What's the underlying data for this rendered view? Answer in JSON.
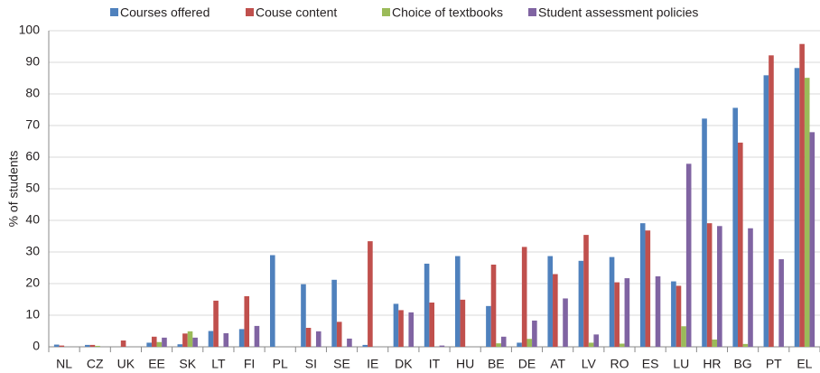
{
  "chart_data": {
    "type": "bar",
    "y_label": "% of students",
    "categories": [
      "NL",
      "CZ",
      "UK",
      "EE",
      "SK",
      "LT",
      "FI",
      "PL",
      "SI",
      "SE",
      "IE",
      "DK",
      "IT",
      "HU",
      "BE",
      "DE",
      "AT",
      "LV",
      "RO",
      "ES",
      "LU",
      "HR",
      "BG",
      "PT",
      "EL"
    ],
    "series": [
      {
        "name": "Courses offered",
        "color": "#4f81bd",
        "values": [
          0.7,
          0.6,
          0,
          1.3,
          0.8,
          5,
          5.6,
          29,
          19.8,
          21.2,
          0.6,
          13.6,
          26.3,
          28.7,
          12.9,
          1.3,
          28.7,
          27.2,
          28.4,
          39.1,
          20.7,
          72.2,
          75.6,
          85.9,
          88.2
        ]
      },
      {
        "name": "Couse content",
        "color": "#c0504d",
        "values": [
          0.4,
          0.6,
          2,
          3.2,
          4.2,
          14.6,
          16,
          0,
          6,
          7.9,
          33.4,
          11.6,
          14,
          14.9,
          26,
          31.6,
          23,
          35.4,
          20.4,
          36.8,
          19.3,
          39.1,
          64.6,
          92.2,
          95.8
        ]
      },
      {
        "name": "Choice of textbooks",
        "color": "#9bbb59",
        "values": [
          0,
          0.3,
          0,
          1.5,
          4.9,
          0,
          0,
          0,
          0,
          0,
          0,
          0,
          0,
          0,
          1.1,
          2.5,
          0,
          1.3,
          1,
          0,
          6.5,
          2.3,
          0.9,
          0,
          85.1
        ]
      },
      {
        "name": "Student assessment policies",
        "color": "#8064a2",
        "values": [
          0,
          0,
          0,
          2.9,
          2.9,
          4.3,
          6.6,
          0,
          4.9,
          2.6,
          0,
          10.9,
          0.4,
          0,
          3.2,
          8.3,
          15.3,
          3.9,
          21.7,
          22.3,
          57.9,
          38.2,
          37.5,
          27.7,
          67.9
        ]
      }
    ],
    "ylim": [
      0,
      100
    ],
    "yticks": [
      0,
      10,
      20,
      30,
      40,
      50,
      60,
      70,
      80,
      90,
      100
    ],
    "grid": true,
    "legend": "top"
  }
}
